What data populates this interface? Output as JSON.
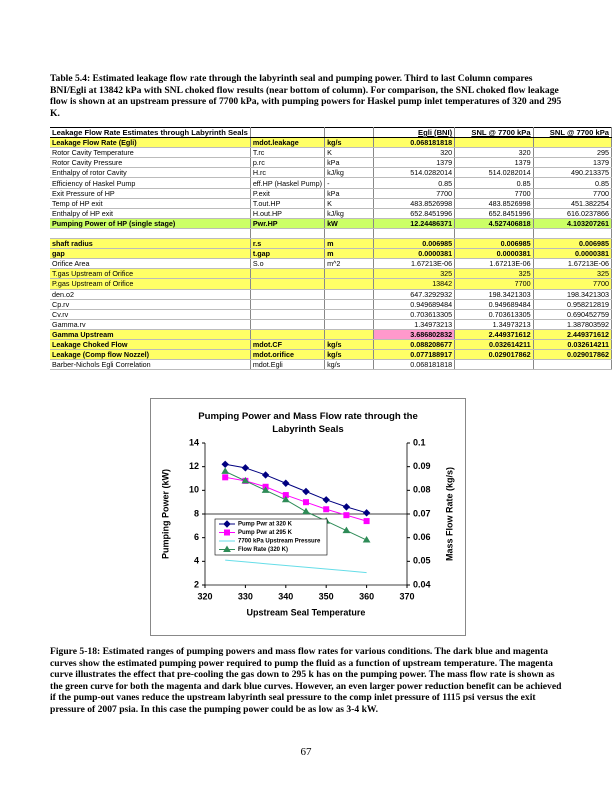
{
  "table_caption": "Table 5.4:  Estimated leakage flow rate through the labyrinth seal and pumping power.  Third to last Column compares BNI/Egli at 13842 kPa with SNL choked flow results (near bottom of column).  For comparison, the SNL choked flow leakage flow is shown at an upstream pressure of 7700 kPa, with pumping powers for Haskel pump inlet temperatures of 320 and 295 K.",
  "table": {
    "header": [
      "Leakage Flow Rate Estimates through Labyrinth Seals",
      null,
      null,
      "Egli (BNI)",
      "SNL @  7700 kPa",
      "SNL @  7700 kPa"
    ],
    "rows": [
      [
        "Leakage Flow Rate (Egli)",
        "mdot.leakage",
        "kg/s",
        "0.068181818",
        null,
        null
      ],
      [
        "Rotor Cavity Temperature",
        "T.rc",
        "K",
        "320",
        "320",
        "295"
      ],
      [
        "Rotor Cavity Pressure",
        "p.rc",
        "kPa",
        "1379",
        "1379",
        "1379"
      ],
      [
        "Enthalpy of rotor Cavity",
        "H.rc",
        "kJ/kg",
        "514.0282014",
        "514.0282014",
        "490.213375"
      ],
      [
        "Efficiency of Haskel Pump",
        "eff.HP (Haskel Pump)",
        "-",
        "0.85",
        "0.85",
        "0.85"
      ],
      [
        "Exit Pressure of HP",
        "P.exit",
        "kPa",
        "7700",
        "7700",
        "7700"
      ],
      [
        "Temp of HP exit",
        "T.out.HP",
        "K",
        "483.8526998",
        "483.8526998",
        "451.382254"
      ],
      [
        "Enthalpy of HP exit",
        "H.out.HP",
        "kJ/kg",
        "652.8451996",
        "652.8451996",
        "616.0237866"
      ],
      [
        "Pumping Power of HP (single stage)",
        "Pwr.HP",
        "kW",
        "12.24486371",
        "4.527406818",
        "4.103207261"
      ],
      [
        null,
        null,
        null,
        null,
        null,
        null
      ],
      [
        "shaft radius",
        "r.s",
        "m",
        "0.006985",
        "0.006985",
        "0.006985"
      ],
      [
        "gap",
        "t.gap",
        "m",
        "0.0000381",
        "0.0000381",
        "0.0000381"
      ],
      [
        "Orifice Area",
        "S.o",
        "m^2",
        "1.67213E-06",
        "1.67213E-06",
        "1.67213E-06"
      ],
      [
        "T.gas Upstream of Orifice",
        null,
        null,
        "325",
        "325",
        "325"
      ],
      [
        "P.gas Upstream of Orifice",
        null,
        null,
        "13842",
        "7700",
        "7700"
      ],
      [
        "den.o2",
        null,
        null,
        "647.3292932",
        "198.3421303",
        "198.3421303"
      ],
      [
        "Cp.rv",
        null,
        null,
        "0.949689484",
        "0.949689484",
        "0.958212819"
      ],
      [
        "Cv.rv",
        null,
        null,
        "0.703613305",
        "0.703613305",
        "0.690452759"
      ],
      [
        "Gamma.rv",
        null,
        null,
        "1.34973213",
        "1.34973213",
        "1.387803592"
      ],
      [
        "Gamma Upstream",
        null,
        null,
        "3.686802832",
        "2.449371612",
        "2.449371612"
      ],
      [
        "Leakage Choked Flow",
        "mdot.CF",
        "kg/s",
        "0.088208677",
        "0.032614211",
        "0.032614211"
      ],
      [
        "Leakage (Comp flow Nozzel)",
        "mdot.orifice",
        "kg/s",
        "0.077188917",
        "0.029017862",
        "0.029017862"
      ],
      [
        "Barber-Nichols Egli Correlation",
        "mdot.Egli",
        "kg/s",
        "0.068181818",
        null,
        null
      ]
    ]
  },
  "chart_data": {
    "type": "line",
    "title": "Pumping Power and Mass Flow rate through the Labyrinth Seals",
    "x_label": "Upstream Seal Temperature",
    "y_label": "Pumping Power (kW)",
    "y2_label": "Mass Flow Rate (kg/s)",
    "x": [
      325,
      330,
      335,
      340,
      345,
      350,
      355,
      360
    ],
    "series": [
      {
        "name": "Pump Pwr at 320 K",
        "color": "#000080",
        "marker": "diamond",
        "values": [
          12.2,
          11.9,
          11.3,
          10.6,
          9.9,
          9.2,
          8.6,
          8.1
        ]
      },
      {
        "name": "Pump Pwr at 295 K",
        "color": "#ff00ff",
        "marker": "square",
        "values": [
          11.1,
          10.8,
          10.3,
          9.6,
          9.0,
          8.4,
          7.9,
          7.4
        ]
      },
      {
        "name": "7700 kPa Upstream Pressure",
        "color": "#66dde8",
        "marker": "none",
        "values": [
          4.1,
          3.95,
          3.8,
          3.65,
          3.5,
          3.35,
          3.2,
          3.05
        ]
      },
      {
        "name": "Flow Rate (320 K)",
        "color": "#2e8b57",
        "marker": "triangle",
        "axis": "y2",
        "values": [
          0.088,
          0.084,
          0.08,
          0.076,
          0.071,
          0.067,
          0.063,
          0.059
        ]
      }
    ],
    "xlim": [
      320,
      370
    ],
    "xticks": [
      320,
      330,
      340,
      350,
      360,
      370
    ],
    "ylim": [
      2,
      14
    ],
    "yticks": [
      2,
      4,
      6,
      8,
      10,
      12,
      14
    ],
    "y2lim": [
      0.04,
      0.1
    ],
    "y2ticks": [
      0.04,
      0.05,
      0.06,
      0.07,
      0.08,
      0.09,
      0.1
    ]
  },
  "figure_caption": "Figure 5-18:  Estimated ranges of pumping powers and mass flow rates for various conditions.  The dark blue and magenta curves show the estimated pumping power required to pump the fluid as a function of upstream temperature.  The magenta curve illustrates the effect that pre-cooling the gas down to 295 k has on the pumping power.  The mass flow rate is shown as the green curve for both the magenta and dark blue curves.  However, an even larger power reduction benefit can be achieved if the pump-out vanes reduce the upstream labyrinth seal pressure to the comp inlet pressure of 1115 psi versus the exit pressure of 2007 psia.   In this case the pumping power could be as low as 3-4 kW.",
  "page_number": "67"
}
